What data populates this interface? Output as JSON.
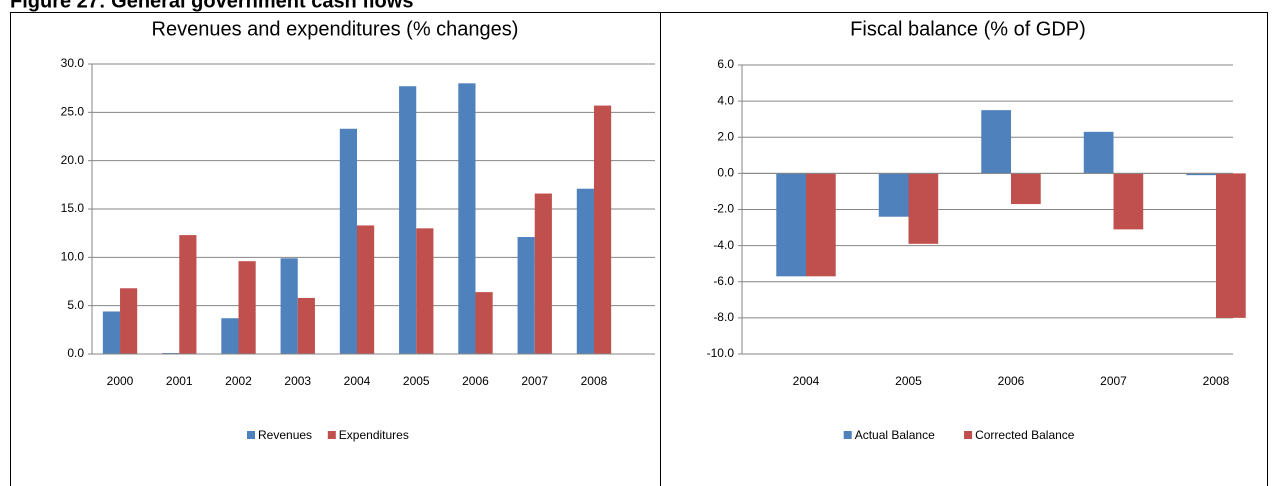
{
  "header": {
    "title": "Figure 27: General government cash flows"
  },
  "chart_data": [
    {
      "type": "bar",
      "title": "Revenues and expenditures (% changes)",
      "categories": [
        "2000",
        "2001",
        "2002",
        "2003",
        "2004",
        "2005",
        "2006",
        "2007",
        "2008"
      ],
      "series": [
        {
          "name": "Revenues",
          "color": "#4f81bd",
          "values": [
            4.4,
            0.1,
            3.7,
            9.9,
            23.3,
            27.7,
            28.0,
            12.1,
            17.1
          ]
        },
        {
          "name": "Expenditures",
          "color": "#c0504d",
          "values": [
            6.8,
            12.3,
            9.6,
            5.8,
            13.3,
            13.0,
            6.4,
            16.6,
            25.7
          ]
        }
      ],
      "ylim": [
        0,
        30
      ],
      "yticks": [
        {
          "value": 0,
          "label": "0.0"
        },
        {
          "value": 5,
          "label": "5.0"
        },
        {
          "value": 10,
          "label": "10.0"
        },
        {
          "value": 15,
          "label": "15.0"
        },
        {
          "value": 20,
          "label": "20.0"
        },
        {
          "value": 25,
          "label": "25.0"
        },
        {
          "value": 30,
          "label": "30.0"
        }
      ],
      "grid": true,
      "legend": "bottom"
    },
    {
      "type": "bar",
      "title": "Fiscal balance (% of GDP)",
      "categories": [
        "2004",
        "2005",
        "2006",
        "2007",
        "2008"
      ],
      "series": [
        {
          "name": "Actual Balance",
          "color": "#4f81bd",
          "values": [
            -5.7,
            -2.4,
            3.5,
            2.3,
            -0.1
          ]
        },
        {
          "name": "Corrected Balance",
          "color": "#c0504d",
          "values": [
            -5.7,
            -3.9,
            -1.7,
            -3.1,
            -8.0
          ]
        }
      ],
      "ylim": [
        -10,
        6
      ],
      "yticks": [
        {
          "value": -10,
          "label": "-10.0"
        },
        {
          "value": -8,
          "label": "-8.0"
        },
        {
          "value": -6,
          "label": "-6.0"
        },
        {
          "value": -4,
          "label": "-4.0"
        },
        {
          "value": -2,
          "label": "-2.0"
        },
        {
          "value": 0,
          "label": "0.0"
        },
        {
          "value": 2,
          "label": "2.0"
        },
        {
          "value": 4,
          "label": "4.0"
        },
        {
          "value": 6,
          "label": "6.0"
        }
      ],
      "grid": true,
      "legend": "bottom"
    }
  ]
}
